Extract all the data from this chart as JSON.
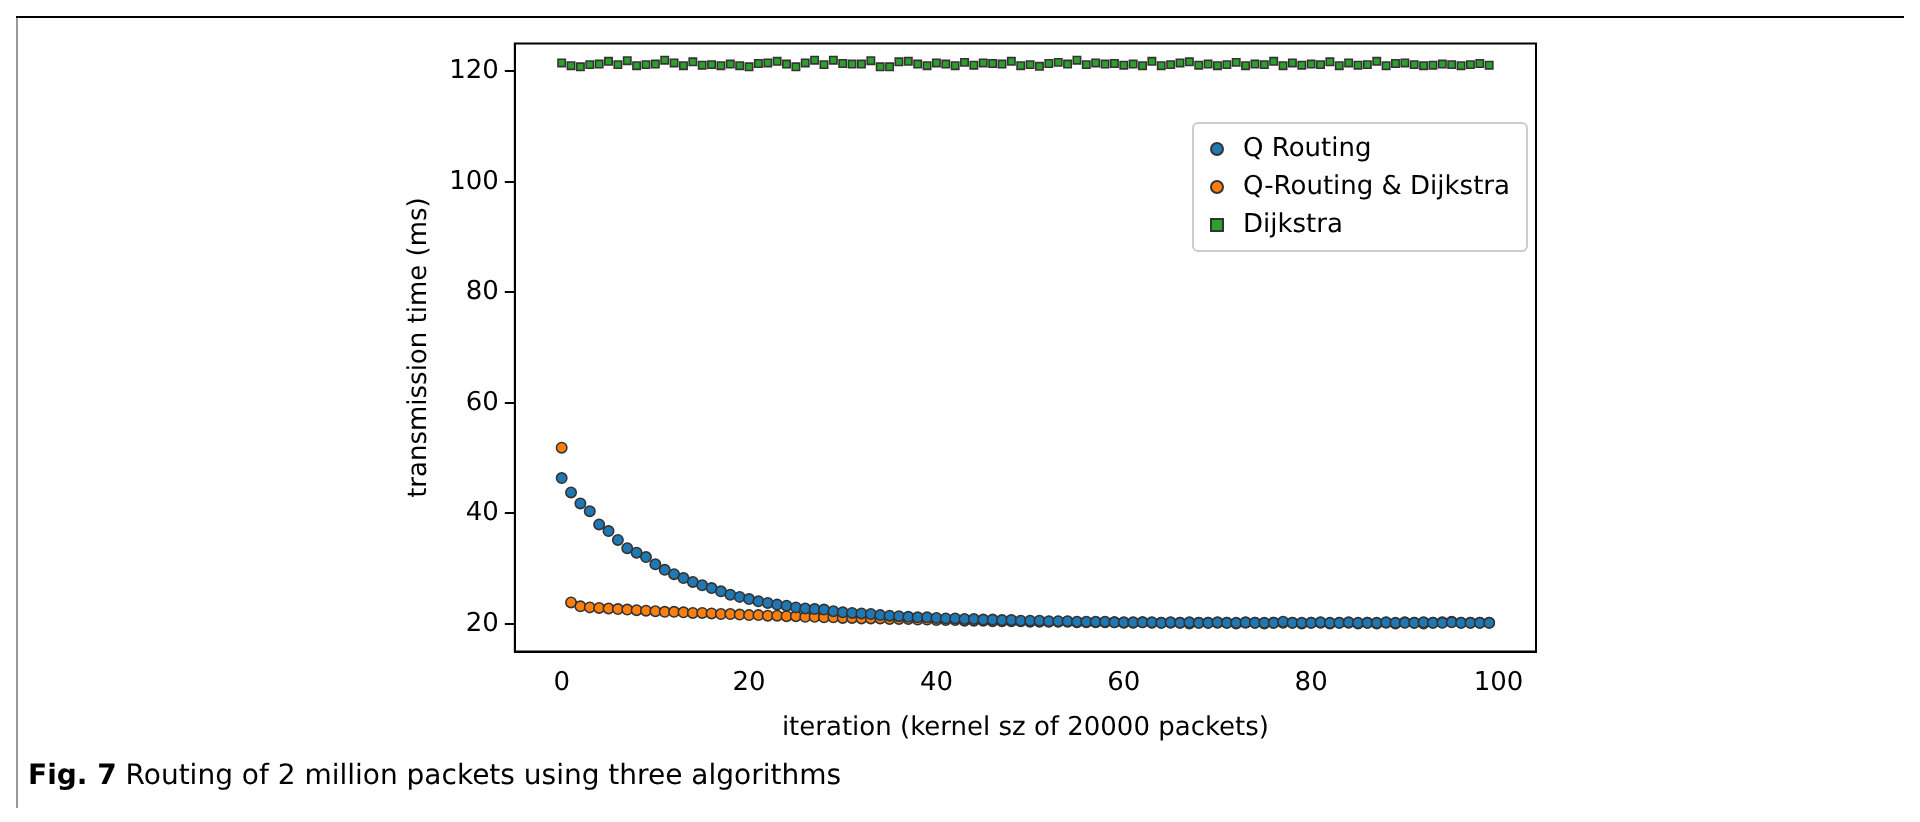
{
  "chart_data": {
    "type": "scatter",
    "title": "Fig. 7 Routing of 2 million packets using three algorithms",
    "xlabel": "iteration (kernel sz of 20000 packets)",
    "ylabel": "transmission time (ms)",
    "x": [
      0,
      1,
      2,
      3,
      4,
      5,
      6,
      7,
      8,
      9,
      10,
      11,
      12,
      13,
      14,
      15,
      16,
      17,
      18,
      19,
      20,
      21,
      22,
      23,
      24,
      25,
      26,
      27,
      28,
      29,
      30,
      31,
      32,
      33,
      34,
      35,
      36,
      37,
      38,
      39,
      40,
      41,
      42,
      43,
      44,
      45,
      46,
      47,
      48,
      49,
      50,
      51,
      52,
      53,
      54,
      55,
      56,
      57,
      58,
      59,
      60,
      61,
      62,
      63,
      64,
      65,
      66,
      67,
      68,
      69,
      70,
      71,
      72,
      73,
      74,
      75,
      76,
      77,
      78,
      79,
      80,
      81,
      82,
      83,
      84,
      85,
      86,
      87,
      88,
      89,
      90,
      91,
      92,
      93,
      94,
      95,
      96,
      97,
      98,
      99
    ],
    "series": [
      {
        "name": "Q Routing",
        "color": "#1f77b4",
        "marker": "circle",
        "values": [
          46.4,
          43.8,
          41.8,
          40.4,
          38.0,
          36.8,
          35.2,
          33.7,
          32.9,
          32.1,
          30.8,
          29.8,
          29.0,
          28.3,
          27.6,
          27.0,
          26.5,
          25.9,
          25.3,
          24.9,
          24.5,
          24.1,
          23.8,
          23.5,
          23.3,
          23.0,
          22.8,
          22.7,
          22.6,
          22.3,
          22.1,
          22.0,
          21.9,
          21.8,
          21.6,
          21.5,
          21.4,
          21.3,
          21.2,
          21.2,
          21.1,
          21.0,
          21.0,
          20.9,
          20.9,
          20.8,
          20.8,
          20.7,
          20.7,
          20.6,
          20.6,
          20.6,
          20.5,
          20.5,
          20.5,
          20.4,
          20.4,
          20.4,
          20.4,
          20.3,
          20.3,
          20.3,
          20.3,
          20.3,
          20.2,
          20.3,
          20.2,
          20.3,
          20.2,
          20.2,
          20.3,
          20.2,
          20.2,
          20.3,
          20.2,
          20.2,
          20.2,
          20.4,
          20.2,
          20.2,
          20.2,
          20.3,
          20.2,
          20.2,
          20.3,
          20.2,
          20.2,
          20.2,
          20.3,
          20.2,
          20.2,
          20.2,
          20.3,
          20.2,
          20.2,
          20.3,
          20.2,
          20.2,
          20.2,
          20.2
        ]
      },
      {
        "name": "Q-Routing &  Dijkstra",
        "color": "#ff7f0e",
        "marker": "circle",
        "values": [
          51.9,
          23.9,
          23.2,
          23.0,
          22.9,
          22.8,
          22.7,
          22.6,
          22.5,
          22.4,
          22.3,
          22.2,
          22.2,
          22.1,
          22.0,
          22.0,
          21.9,
          21.8,
          21.8,
          21.7,
          21.6,
          21.6,
          21.5,
          21.5,
          21.4,
          21.4,
          21.3,
          21.3,
          21.2,
          21.2,
          21.1,
          21.1,
          21.0,
          21.0,
          21.0,
          20.9,
          20.9,
          20.9,
          20.8,
          20.8,
          20.7,
          20.7,
          20.7,
          20.6,
          20.6,
          20.6,
          20.5,
          20.5,
          20.5,
          20.5,
          20.4,
          20.4,
          20.4,
          20.4,
          20.4,
          20.3,
          20.3,
          20.3,
          20.3,
          20.3,
          20.2,
          20.2,
          20.3,
          20.2,
          20.2,
          20.2,
          20.2,
          20.1,
          20.2,
          20.2,
          20.2,
          20.2,
          20.1,
          20.2,
          20.2,
          20.1,
          20.2,
          20.2,
          20.2,
          20.1,
          20.2,
          20.2,
          20.1,
          20.2,
          20.2,
          20.1,
          20.2,
          20.1,
          20.2,
          20.1,
          20.3,
          20.2,
          20.1,
          20.2,
          20.3,
          20.4,
          20.2,
          20.2,
          20.2,
          20.2
        ]
      },
      {
        "name": "Dijkstra",
        "color": "#2ca02c",
        "marker": "square",
        "values": [
          121.5,
          121.0,
          120.8,
          121.2,
          121.3,
          121.8,
          121.2,
          121.9,
          121.0,
          121.2,
          121.3,
          122.0,
          121.5,
          121.0,
          121.7,
          121.1,
          121.2,
          121.0,
          121.3,
          121.0,
          120.8,
          121.4,
          121.5,
          121.8,
          121.3,
          120.8,
          121.5,
          122.0,
          121.2,
          122.0,
          121.4,
          121.3,
          121.3,
          121.9,
          120.8,
          120.8,
          121.7,
          121.8,
          121.3,
          121.0,
          121.5,
          121.3,
          121.0,
          121.6,
          121.1,
          121.5,
          121.4,
          121.3,
          121.8,
          121.0,
          121.2,
          120.9,
          121.4,
          121.6,
          121.3,
          122.0,
          121.2,
          121.5,
          121.3,
          121.4,
          121.1,
          121.3,
          121.0,
          121.8,
          121.0,
          121.2,
          121.5,
          121.7,
          121.1,
          121.3,
          121.0,
          121.2,
          121.6,
          121.0,
          121.3,
          121.2,
          121.8,
          121.0,
          121.5,
          121.1,
          121.3,
          121.2,
          121.7,
          121.0,
          121.5,
          121.1,
          121.2,
          121.8,
          121.0,
          121.4,
          121.5,
          121.2,
          121.0,
          121.1,
          121.3,
          121.2,
          121.0,
          121.2,
          121.4,
          121.1
        ]
      }
    ],
    "xlim": [
      -5,
      104
    ],
    "xticks": [
      0,
      20,
      40,
      60,
      80,
      100
    ],
    "ylim": [
      15,
      125
    ],
    "yticks": [
      20,
      40,
      60,
      80,
      100,
      120
    ],
    "grid": false,
    "legend": "top right"
  }
}
